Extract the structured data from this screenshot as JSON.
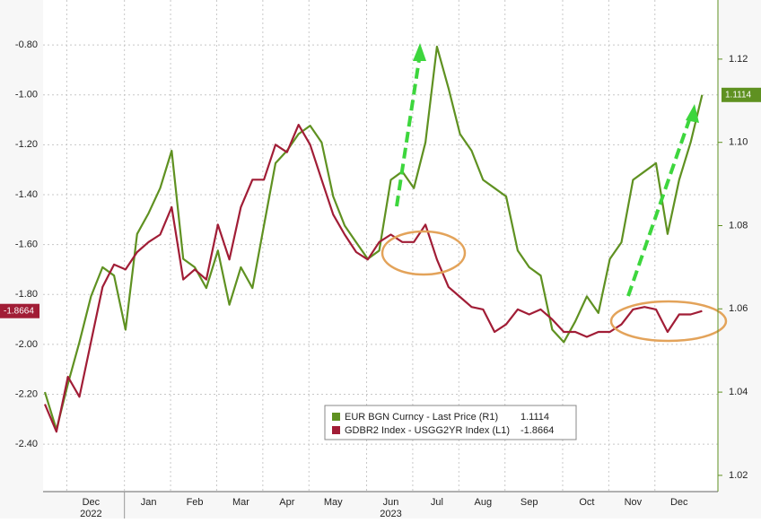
{
  "chart_data": {
    "type": "line",
    "categories": [
      null,
      null,
      null,
      null,
      "Dec",
      null,
      null,
      null,
      null,
      "Jan",
      null,
      null,
      null,
      "Feb",
      null,
      null,
      null,
      "Mar",
      null,
      null,
      null,
      "Apr",
      null,
      null,
      null,
      "May",
      null,
      null,
      null,
      null,
      "Jun",
      null,
      null,
      null,
      "Jul",
      null,
      null,
      null,
      "Aug",
      null,
      null,
      null,
      "Sep",
      null,
      null,
      null,
      null,
      "Oct",
      null,
      null,
      null,
      "Nov",
      null,
      null,
      null,
      "Dec",
      null,
      null
    ],
    "years": [
      "2022",
      "2023"
    ],
    "series": [
      {
        "name": "EUR BGN Curncy - Last Price (R1)",
        "color": "#5f9121",
        "axis": "y2",
        "values": [
          1.04,
          1.031,
          1.042,
          1.052,
          1.063,
          1.07,
          1.068,
          1.055,
          1.078,
          1.083,
          1.089,
          1.098,
          1.072,
          1.07,
          1.065,
          1.074,
          1.061,
          1.07,
          1.065,
          1.08,
          1.095,
          1.098,
          1.102,
          1.104,
          1.1,
          1.087,
          1.08,
          1.076,
          1.072,
          1.074,
          1.091,
          1.093,
          1.089,
          1.1,
          1.123,
          1.113,
          1.102,
          1.098,
          1.091,
          1.089,
          1.087,
          1.074,
          1.07,
          1.068,
          1.055,
          1.052,
          1.057,
          1.063,
          1.059,
          1.072,
          1.076,
          1.091,
          1.093,
          1.095,
          1.078,
          1.091,
          1.1,
          1.1114
        ]
      },
      {
        "name": "GDBR2 Index - USGG2YR Index (L1)",
        "color": "#a11d36",
        "values": [
          -2.24,
          -2.35,
          -2.13,
          -2.21,
          -1.99,
          -1.77,
          -1.68,
          -1.7,
          -1.63,
          -1.59,
          -1.56,
          -1.45,
          -1.74,
          -1.7,
          -1.74,
          -1.52,
          -1.66,
          -1.45,
          -1.34,
          -1.34,
          -1.2,
          -1.23,
          -1.12,
          -1.2,
          -1.34,
          -1.48,
          -1.56,
          -1.63,
          -1.66,
          -1.59,
          -1.56,
          -1.59,
          -1.59,
          -1.52,
          -1.66,
          -1.77,
          -1.81,
          -1.85,
          -1.86,
          -1.95,
          -1.92,
          -1.86,
          -1.88,
          -1.86,
          -1.9,
          -1.95,
          -1.95,
          -1.97,
          -1.95,
          -1.95,
          -1.92,
          -1.86,
          -1.85,
          -1.86,
          -1.95,
          -1.88,
          -1.88,
          -1.8664
        ]
      }
    ],
    "ylim": [
      -2.59,
      -0.62
    ],
    "yticks": [
      {
        "value": -2.4,
        "label": "-2.40"
      },
      {
        "value": -2.2,
        "label": "-2.20"
      },
      {
        "value": -2.0,
        "label": "-2.00"
      },
      {
        "value": -1.8,
        "label": "-1.80"
      },
      {
        "value": -1.6,
        "label": "-1.60"
      },
      {
        "value": -1.4,
        "label": "-1.40"
      },
      {
        "value": -1.2,
        "label": "-1.20"
      },
      {
        "value": -1.0,
        "label": "-1.00"
      },
      {
        "value": -0.8,
        "label": "-0.80"
      }
    ],
    "y2lim": [
      1.0161,
      1.1342
    ],
    "y2ticks": [
      1.02,
      1.04,
      1.06,
      1.08,
      {
        "value": 1.1,
        "label": "1.10"
      },
      1.12
    ],
    "grid": true
  }
}
